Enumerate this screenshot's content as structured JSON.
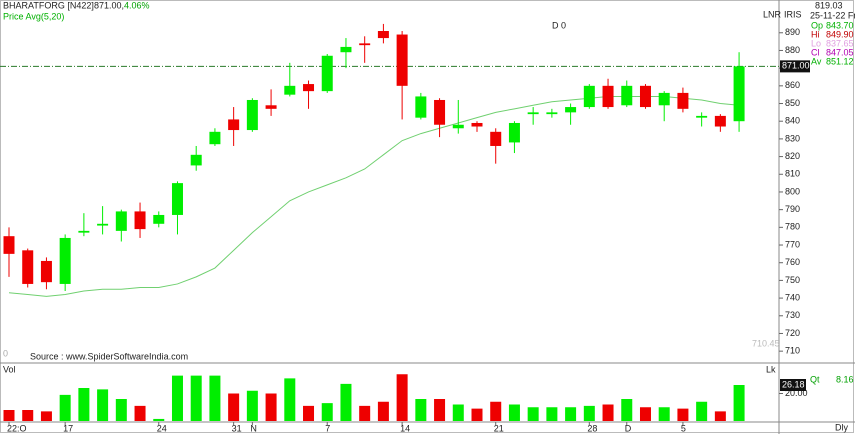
{
  "chart_data": {
    "type": "candlestick",
    "title": "BHARATFORG [N422]",
    "header_price": "871.00,",
    "header_change": "4.06%",
    "legend_text": "Price  Avg(5,20)",
    "cursor_text": "D 0",
    "top_right": [
      "LNR",
      "IRIS"
    ],
    "info_top": "819.03",
    "info_date": "25-11-22 Fri",
    "info": [
      {
        "label": "Op",
        "value": "843.70",
        "color": "#00b000"
      },
      {
        "label": "Hi",
        "value": "849.90",
        "color": "#c00000"
      },
      {
        "label": "Lo",
        "value": "837.65",
        "color": "#e0a0e0"
      },
      {
        "label": "Cl",
        "value": "847.05",
        "color": "#b000b0"
      },
      {
        "label": "Av",
        "value": "851.12",
        "color": "#00b000"
      }
    ],
    "source": "Source : www.SpiderSoftwareIndia.com",
    "zero_label": "0",
    "min_label": "710.45",
    "price_line": {
      "value": 871,
      "label": "871.00"
    },
    "categories": [
      "22:O",
      null,
      null,
      "17",
      null,
      null,
      null,
      null,
      "24",
      null,
      null,
      null,
      "31",
      "N",
      null,
      null,
      null,
      "7",
      null,
      null,
      null,
      "14",
      null,
      null,
      null,
      null,
      "21",
      null,
      null,
      null,
      null,
      "28",
      null,
      "D",
      null,
      null,
      "5",
      null,
      null,
      null
    ],
    "open": [
      775,
      767,
      761,
      748,
      777,
      781,
      778,
      789,
      782,
      787,
      815,
      827,
      841,
      835,
      849,
      855,
      861,
      857,
      879,
      884,
      891,
      889,
      842,
      852,
      836,
      839,
      834,
      828,
      844,
      844,
      845,
      848,
      860,
      849,
      860,
      849,
      856,
      842,
      843,
      840
    ],
    "close": [
      765,
      748,
      749,
      774,
      778,
      782,
      789,
      779,
      787,
      805,
      821,
      834,
      835,
      852,
      847,
      860,
      857,
      877,
      882,
      883,
      887,
      860,
      854,
      838,
      838,
      837,
      826,
      839,
      845,
      845,
      848,
      860,
      848,
      860,
      848,
      856,
      847,
      843,
      837,
      871
    ],
    "high": [
      780,
      768,
      763,
      776,
      788,
      792,
      790,
      794,
      789,
      806,
      826,
      836,
      848,
      853,
      858,
      873,
      863,
      878,
      887,
      888,
      895,
      891,
      856,
      853,
      852,
      840,
      836,
      840,
      848,
      847,
      850,
      861,
      864,
      863,
      861,
      857,
      859,
      845,
      844,
      879
    ],
    "low": [
      752,
      746,
      745,
      744,
      775,
      776,
      772,
      774,
      780,
      776,
      812,
      826,
      826,
      834,
      843,
      854,
      847,
      856,
      870,
      873,
      884,
      841,
      841,
      831,
      833,
      834,
      816,
      822,
      838,
      842,
      838,
      847,
      847,
      848,
      847,
      840,
      845,
      837,
      834,
      834
    ],
    "avg": [
      743,
      742,
      741,
      742,
      744,
      745,
      745,
      746,
      746,
      748,
      752,
      757,
      767,
      777,
      786,
      795,
      800,
      804,
      808,
      813,
      821,
      829,
      833,
      836,
      839,
      842,
      845,
      847,
      849,
      851,
      852,
      853,
      854,
      854,
      854,
      854,
      853,
      852,
      850,
      849
    ],
    "up_color": "#00ee00",
    "down_color": "#ee0000",
    "avg_color": "#70d070",
    "ylim": [
      705,
      904
    ],
    "yticks": [
      710,
      720,
      730,
      740,
      750,
      760,
      770,
      780,
      790,
      800,
      810,
      820,
      830,
      840,
      850,
      860,
      870,
      880,
      890
    ],
    "volume_title": "Vol",
    "volume_unit": "Lk",
    "volume_qt_label": "Qt",
    "volume_qt_value": "8.16",
    "volume": [
      8,
      8,
      7,
      19,
      24,
      23,
      16,
      11,
      1.5,
      33,
      33,
      33,
      20,
      22,
      20,
      31,
      11,
      13,
      27,
      11,
      14,
      34,
      16,
      16,
      12,
      9,
      14,
      12,
      10,
      10,
      10,
      11,
      12,
      16,
      10,
      10,
      9,
      14,
      7,
      26.18
    ],
    "volume_labels_last": "26.18",
    "volume_ylim": [
      0,
      40
    ],
    "volume_yticks": [
      {
        "value": 20,
        "label": "20.00"
      }
    ],
    "period": "Dly"
  }
}
